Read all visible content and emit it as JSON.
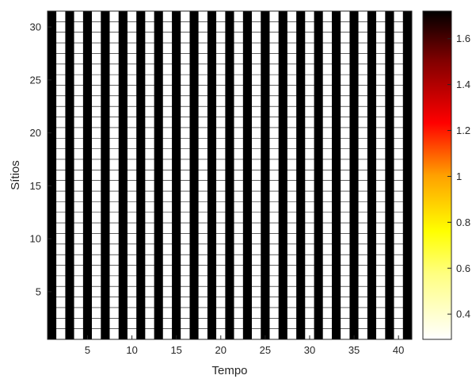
{
  "chart_data": {
    "type": "heatmap",
    "title": "",
    "xlabel": "Tempo",
    "ylabel": "Sítios",
    "x_range": [
      1,
      41
    ],
    "y_range": [
      1,
      31
    ],
    "xlim": [
      0.5,
      41.5
    ],
    "ylim": [
      0.5,
      31.5
    ],
    "x_ticks": [
      5,
      10,
      15,
      20,
      25,
      30,
      35,
      40
    ],
    "y_ticks": [
      5,
      10,
      15,
      20,
      25,
      30
    ],
    "pattern": "alternating columns by time step; odd Tempo = high value, even Tempo = low value",
    "odd_time_value": 1.72,
    "even_time_value": 0.29,
    "colormap": "hot (reversed)",
    "colorbar": {
      "range": [
        0.29,
        1.72
      ],
      "ticks": [
        0.4,
        0.6,
        0.8,
        1,
        1.2,
        1.4,
        1.6
      ],
      "tick_labels": [
        "0.4",
        "0.6",
        "0.8",
        "1",
        "1.2",
        "1.4",
        "1.6"
      ]
    },
    "grid": false,
    "cell_edges": true
  }
}
